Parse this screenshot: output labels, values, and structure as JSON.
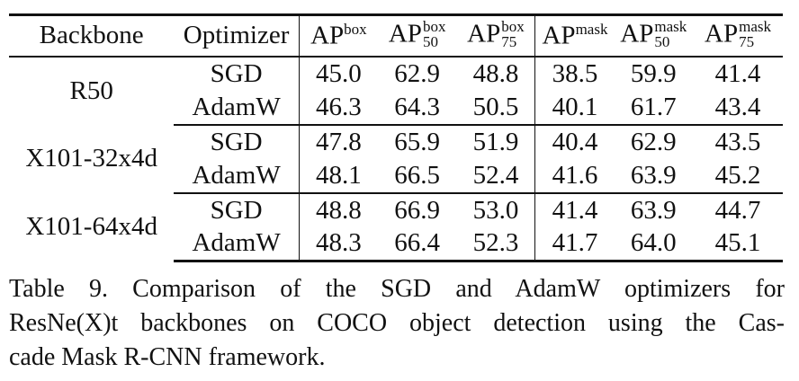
{
  "table": {
    "headers": {
      "backbone": "Backbone",
      "optimizer": "Optimizer",
      "ap_box": {
        "base": "AP",
        "sup": "box"
      },
      "ap50_box": {
        "base": "AP",
        "sup": "box",
        "sub": "50"
      },
      "ap75_box": {
        "base": "AP",
        "sup": "box",
        "sub": "75"
      },
      "ap_mask": {
        "base": "AP",
        "sup": "mask"
      },
      "ap50_mask": {
        "base": "AP",
        "sup": "mask",
        "sub": "50"
      },
      "ap75_mask": {
        "base": "AP",
        "sup": "mask",
        "sub": "75"
      }
    },
    "groups": [
      {
        "backbone": "R50",
        "rows": [
          {
            "optimizer": "SGD",
            "values": [
              "45.0",
              "62.9",
              "48.8",
              "38.5",
              "59.9",
              "41.4"
            ]
          },
          {
            "optimizer": "AdamW",
            "values": [
              "46.3",
              "64.3",
              "50.5",
              "40.1",
              "61.7",
              "43.4"
            ]
          }
        ]
      },
      {
        "backbone": "X101-32x4d",
        "rows": [
          {
            "optimizer": "SGD",
            "values": [
              "47.8",
              "65.9",
              "51.9",
              "40.4",
              "62.9",
              "43.5"
            ]
          },
          {
            "optimizer": "AdamW",
            "values": [
              "48.1",
              "66.5",
              "52.4",
              "41.6",
              "63.9",
              "45.2"
            ]
          }
        ]
      },
      {
        "backbone": "X101-64x4d",
        "rows": [
          {
            "optimizer": "SGD",
            "values": [
              "48.8",
              "66.9",
              "53.0",
              "41.4",
              "63.9",
              "44.7"
            ]
          },
          {
            "optimizer": "AdamW",
            "values": [
              "48.3",
              "66.4",
              "52.3",
              "41.7",
              "64.0",
              "45.1"
            ]
          }
        ]
      }
    ]
  },
  "caption": {
    "line1": "Table 9. Comparison of the SGD and AdamW optimizers for",
    "line2": "ResNe(X)t backbones on COCO object detection using the Cas-",
    "line3": "cade Mask R-CNN framework."
  }
}
